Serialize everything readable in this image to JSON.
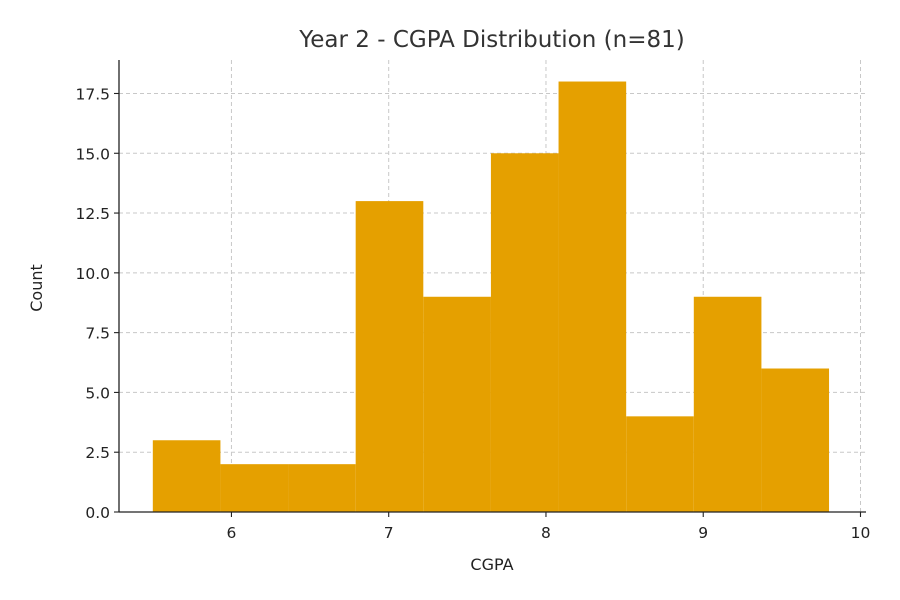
{
  "chart_data": {
    "type": "bar",
    "title": "Year 2 - CGPA Distribution (n=81)",
    "xlabel": "CGPA",
    "ylabel": "Count",
    "bar_color": "#e5a000",
    "xlim": [
      5.285,
      10.035
    ],
    "ylim": [
      0,
      18.9
    ],
    "xticks": [
      6,
      7,
      8,
      9,
      10
    ],
    "xtick_labels": [
      "6",
      "7",
      "8",
      "9",
      "10"
    ],
    "yticks": [
      0,
      2.5,
      5,
      7.5,
      10,
      12.5,
      15,
      17.5
    ],
    "ytick_labels": [
      "0.0",
      "2.5",
      "5.0",
      "7.5",
      "10.0",
      "12.5",
      "15.0",
      "17.5"
    ],
    "grid": true,
    "bins": [
      {
        "x0": 5.5,
        "x1": 5.93,
        "count": 3
      },
      {
        "x0": 5.93,
        "x1": 6.36,
        "count": 2
      },
      {
        "x0": 6.36,
        "x1": 6.79,
        "count": 2
      },
      {
        "x0": 6.79,
        "x1": 7.22,
        "count": 13
      },
      {
        "x0": 7.22,
        "x1": 7.65,
        "count": 9
      },
      {
        "x0": 7.65,
        "x1": 8.08,
        "count": 15
      },
      {
        "x0": 8.08,
        "x1": 8.51,
        "count": 18
      },
      {
        "x0": 8.51,
        "x1": 8.94,
        "count": 4
      },
      {
        "x0": 8.94,
        "x1": 9.37,
        "count": 9
      },
      {
        "x0": 9.37,
        "x1": 9.8,
        "count": 6
      }
    ]
  }
}
